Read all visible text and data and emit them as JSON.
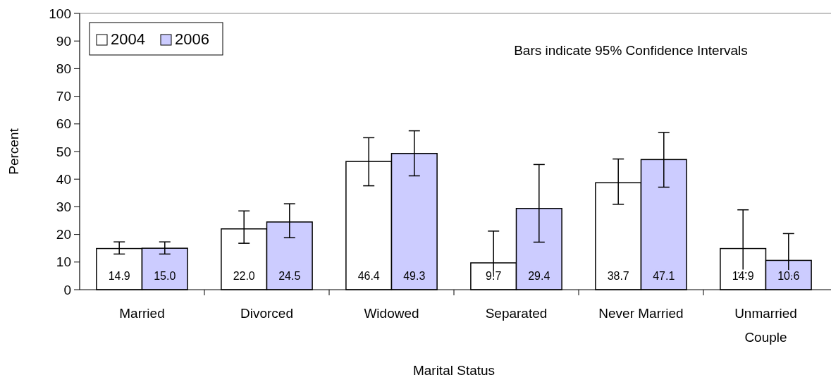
{
  "chart_data": {
    "type": "bar",
    "xlabel": "Marital Status",
    "ylabel": "Percent",
    "categories": [
      "Married",
      "Divorced",
      "Widowed",
      "Separated",
      "Never Married",
      "Unmarried Couple"
    ],
    "series": [
      {
        "name": "2004",
        "color": "#ffffff",
        "values": [
          14.9,
          22.0,
          46.4,
          9.7,
          38.7,
          14.9
        ],
        "value_labels": [
          "14.9",
          "22.0",
          "46.4",
          "9.7",
          "38.7",
          "14.9"
        ],
        "errors": [
          [
            12.9,
            17.3
          ],
          [
            16.8,
            28.5
          ],
          [
            37.6,
            55.0
          ],
          [
            3.9,
            21.2
          ],
          [
            30.9,
            47.3
          ],
          [
            6.1,
            28.9
          ]
        ]
      },
      {
        "name": "2006",
        "color": "#ccccff",
        "values": [
          15.0,
          24.5,
          49.3,
          29.4,
          47.1,
          10.6
        ],
        "value_labels": [
          "15.0",
          "24.5",
          "49.3",
          "29.4",
          "47.1",
          "10.6"
        ],
        "errors": [
          [
            12.9,
            17.3
          ],
          [
            18.8,
            31.1
          ],
          [
            41.2,
            57.5
          ],
          [
            17.2,
            45.3
          ],
          [
            37.1,
            56.9
          ],
          [
            5.0,
            20.3
          ]
        ]
      }
    ],
    "ylim": [
      0,
      100
    ],
    "yticks": [
      0,
      10,
      20,
      30,
      40,
      50,
      60,
      70,
      80,
      90,
      100
    ],
    "grid": false,
    "legend": "top left",
    "annotations": [
      "Bars indicate 95% Confidence Intervals"
    ]
  }
}
